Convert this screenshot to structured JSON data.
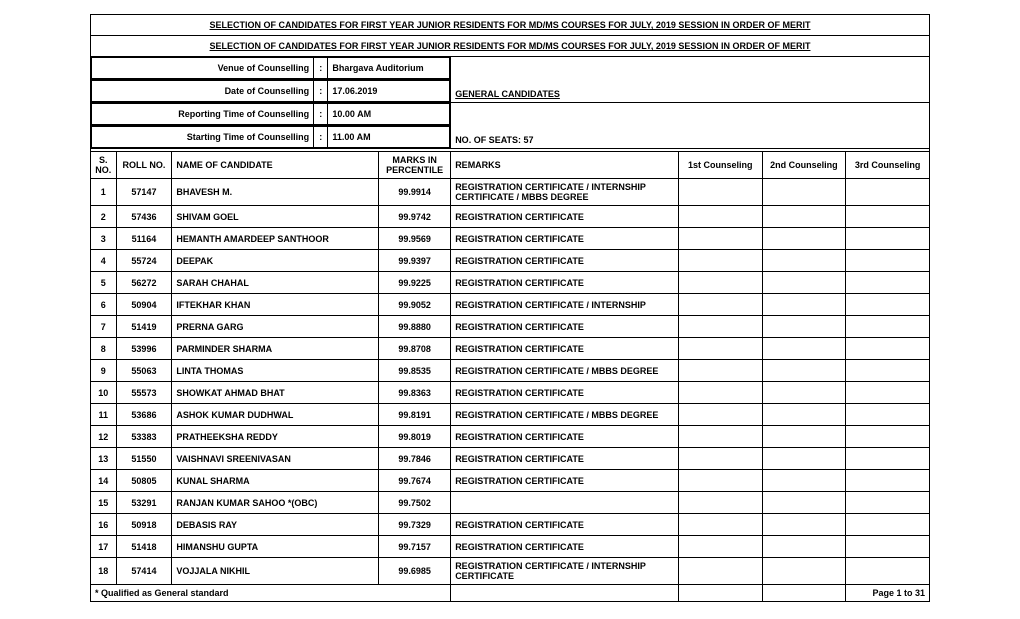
{
  "title1": "SELECTION OF CANDIDATES FOR FIRST YEAR JUNIOR RESIDENTS FOR MD/MS COURSES FOR JULY, 2019 SESSION IN ORDER OF MERIT",
  "title2": "SELECTION OF CANDIDATES FOR FIRST YEAR JUNIOR RESIDENTS FOR MD/MS COURSES FOR JULY, 2019 SESSION IN ORDER OF MERIT",
  "info": {
    "venue_label": "Venue of Counselling",
    "venue_value": "Bhargava Auditorium",
    "date_label": "Date   of Counselling",
    "date_value": "17.06.2019",
    "reporting_label": "Reporting Time of Counselling",
    "reporting_value": "10.00 AM",
    "starting_label": "Starting Time of Counselling",
    "starting_value": "11.00 AM",
    "colon": ":"
  },
  "general_candidates": "GENERAL CANDIDATES",
  "seats": "NO. OF SEATS: 57",
  "columns": {
    "sno": "S. NO.",
    "roll": "ROLL NO.",
    "name": "NAME OF CANDIDATE",
    "marks": "MARKS IN PERCENTILE",
    "remarks": "REMARKS",
    "c1": "1st Counseling",
    "c2": "2nd Counseling",
    "c3": "3rd Counseling"
  },
  "col_widths": {
    "sno": "22px",
    "roll": "48px",
    "name": "178px",
    "marks": "62px",
    "remarks": "196px",
    "c1": "72px",
    "c2": "72px",
    "c3": "72px"
  },
  "rows": [
    {
      "sno": "1",
      "roll": "57147",
      "name": "BHAVESH M.",
      "marks": "99.9914",
      "remarks": "REGISTRATION CERTIFICATE / INTERNSHIP CERTIFICATE / MBBS DEGREE"
    },
    {
      "sno": "2",
      "roll": "57436",
      "name": "SHIVAM GOEL",
      "marks": "99.9742",
      "remarks": "REGISTRATION CERTIFICATE"
    },
    {
      "sno": "3",
      "roll": "51164",
      "name": "HEMANTH AMARDEEP SANTHOOR",
      "marks": "99.9569",
      "remarks": "REGISTRATION CERTIFICATE"
    },
    {
      "sno": "4",
      "roll": "55724",
      "name": "DEEPAK",
      "marks": "99.9397",
      "remarks": "REGISTRATION CERTIFICATE"
    },
    {
      "sno": "5",
      "roll": "56272",
      "name": "SARAH CHAHAL",
      "marks": "99.9225",
      "remarks": "REGISTRATION CERTIFICATE"
    },
    {
      "sno": "6",
      "roll": "50904",
      "name": "IFTEKHAR KHAN",
      "marks": "99.9052",
      "remarks": "REGISTRATION CERTIFICATE / INTERNSHIP"
    },
    {
      "sno": "7",
      "roll": "51419",
      "name": "PRERNA GARG",
      "marks": "99.8880",
      "remarks": "REGISTRATION CERTIFICATE"
    },
    {
      "sno": "8",
      "roll": "53996",
      "name": "PARMINDER SHARMA",
      "marks": "99.8708",
      "remarks": "REGISTRATION CERTIFICATE"
    },
    {
      "sno": "9",
      "roll": "55063",
      "name": "LINTA THOMAS",
      "marks": "99.8535",
      "remarks": "REGISTRATION CERTIFICATE / MBBS DEGREE"
    },
    {
      "sno": "10",
      "roll": "55573",
      "name": "SHOWKAT AHMAD BHAT",
      "marks": "99.8363",
      "remarks": "REGISTRATION CERTIFICATE"
    },
    {
      "sno": "11",
      "roll": "53686",
      "name": "ASHOK KUMAR DUDHWAL",
      "marks": "99.8191",
      "remarks": "REGISTRATION CERTIFICATE / MBBS DEGREE"
    },
    {
      "sno": "12",
      "roll": "53383",
      "name": "PRATHEEKSHA REDDY",
      "marks": "99.8019",
      "remarks": "REGISTRATION CERTIFICATE"
    },
    {
      "sno": "13",
      "roll": "51550",
      "name": "VAISHNAVI SREENIVASAN",
      "marks": "99.7846",
      "remarks": "REGISTRATION CERTIFICATE"
    },
    {
      "sno": "14",
      "roll": "50805",
      "name": "KUNAL SHARMA",
      "marks": "99.7674",
      "remarks": "REGISTRATION CERTIFICATE"
    },
    {
      "sno": "15",
      "roll": "53291",
      "name": "RANJAN KUMAR SAHOO *(OBC)",
      "marks": "99.7502",
      "remarks": ""
    },
    {
      "sno": "16",
      "roll": "50918",
      "name": "DEBASIS RAY",
      "marks": "99.7329",
      "remarks": "REGISTRATION CERTIFICATE"
    },
    {
      "sno": "17",
      "roll": "51418",
      "name": "HIMANSHU GUPTA",
      "marks": "99.7157",
      "remarks": "REGISTRATION CERTIFICATE"
    },
    {
      "sno": "18",
      "roll": "57414",
      "name": "VOJJALA NIKHIL",
      "marks": "99.6985",
      "remarks": "REGISTRATION CERTIFICATE / INTERNSHIP CERTIFICATE"
    }
  ],
  "footer_note": "* Qualified as General standard",
  "page_no": "Page 1 to 31"
}
